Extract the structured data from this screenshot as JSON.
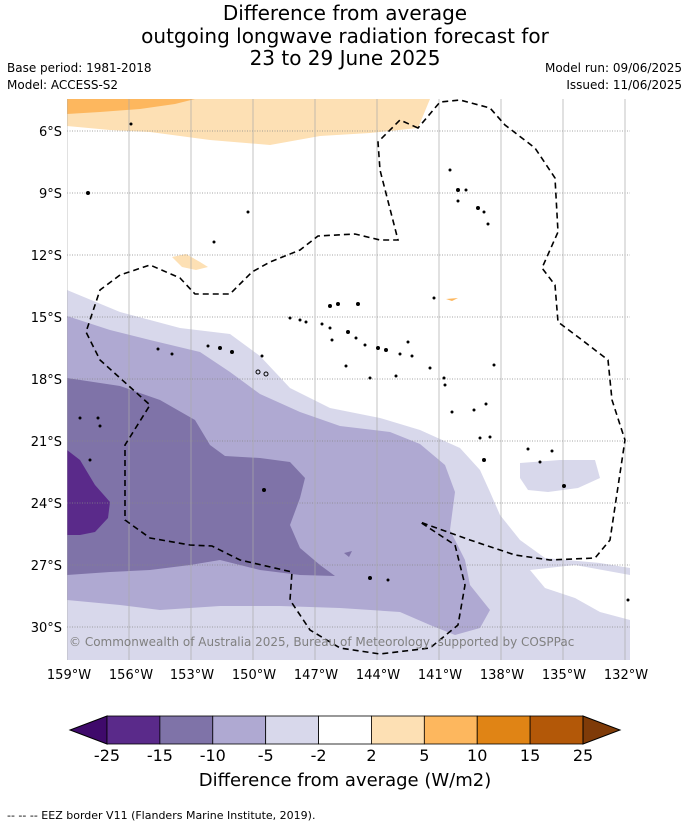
{
  "title": {
    "line1": "Difference from average",
    "line2": "outgoing longwave radiation forecast for",
    "line3": "23 to 29 June 2025"
  },
  "meta": {
    "base_period": "Base period: 1981-2018",
    "model": "Model: ACCESS-S2",
    "model_run": "Model run: 09/06/2025",
    "issued": "Issued: 11/06/2025"
  },
  "map": {
    "copyright": "© Commonwealth of Australia 2025, Bureau of Meteorology, supported by COSPPac",
    "lat_labels": [
      "6°S",
      "9°S",
      "12°S",
      "15°S",
      "18°S",
      "21°S",
      "24°S",
      "27°S",
      "30°S"
    ],
    "lon_labels": [
      "159°W",
      "156°W",
      "153°W",
      "150°W",
      "147°W",
      "144°W",
      "141°W",
      "138°W",
      "135°W",
      "132°W"
    ]
  },
  "colorbar": {
    "ticks": [
      "-25",
      "-15",
      "-10",
      "-5",
      "-2",
      "2",
      "5",
      "10",
      "15",
      "25"
    ],
    "colors": [
      "#3f0a6b",
      "#5a2a8a",
      "#7f73a8",
      "#afa9d2",
      "#d8d8eb",
      "#ffffff",
      "#fde0b4",
      "#fdb75e",
      "#e08415",
      "#b35808",
      "#7f3b08"
    ],
    "label": "Difference from average (W/m2)"
  },
  "footer": "--  --  -- EEZ border V11 (Flanders Marine Institute, 2019)."
}
